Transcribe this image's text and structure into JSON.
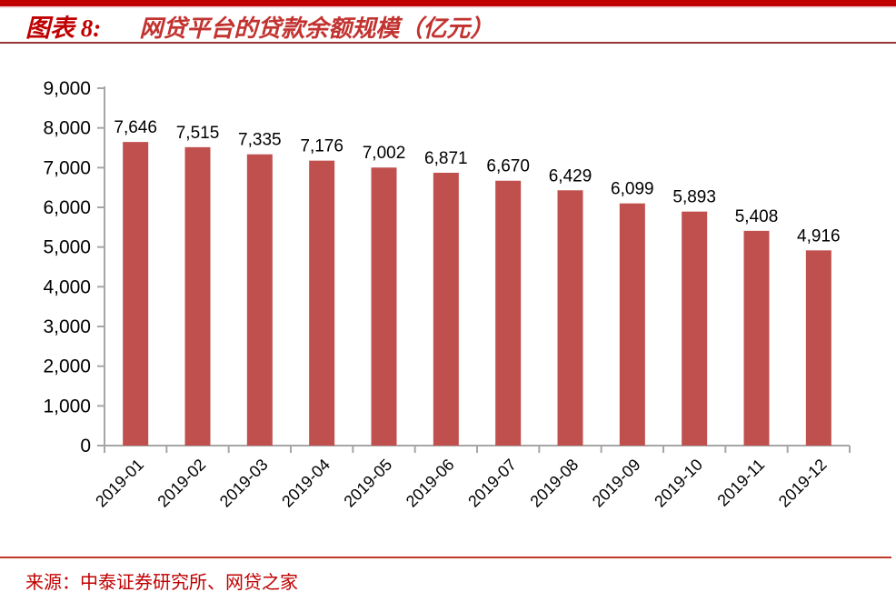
{
  "page": {
    "figure_label": "图表 8:",
    "figure_title": "网贷平台的贷款余额规模（亿元）",
    "source_text": "来源：中泰证券研究所、网贷之家"
  },
  "colors": {
    "accent_red": "#C00000",
    "title_red": "#C23330",
    "bar_fill": "#C0504D",
    "header_divider": "#943634",
    "footer_divider": "#C0392B",
    "axis_gray": "#A6A6A6",
    "label_text": "#000000"
  },
  "chart_data": {
    "type": "bar",
    "title": "网贷平台的贷款余额规模（亿元）",
    "xlabel": "",
    "ylabel": "",
    "categories": [
      "2019-01",
      "2019-02",
      "2019-03",
      "2019-04",
      "2019-05",
      "2019-06",
      "2019-07",
      "2019-08",
      "2019-09",
      "2019-10",
      "2019-11",
      "2019-12"
    ],
    "values": [
      7646,
      7515,
      7335,
      7176,
      7002,
      6871,
      6670,
      6429,
      6099,
      5893,
      5408,
      4916
    ],
    "value_labels": [
      "7,646",
      "7,515",
      "7,335",
      "7,176",
      "7,002",
      "6,871",
      "6,670",
      "6,429",
      "6,099",
      "5,893",
      "5,408",
      "4,916"
    ],
    "ylim": [
      0,
      9000
    ],
    "ytick_step": 1000,
    "ytick_labels": [
      "0",
      "1,000",
      "2,000",
      "3,000",
      "4,000",
      "5,000",
      "6,000",
      "7,000",
      "8,000",
      "9,000"
    ],
    "grid": false,
    "legend": "none",
    "bar_color": "#C0504D",
    "x_label_rotation_deg": -45
  }
}
